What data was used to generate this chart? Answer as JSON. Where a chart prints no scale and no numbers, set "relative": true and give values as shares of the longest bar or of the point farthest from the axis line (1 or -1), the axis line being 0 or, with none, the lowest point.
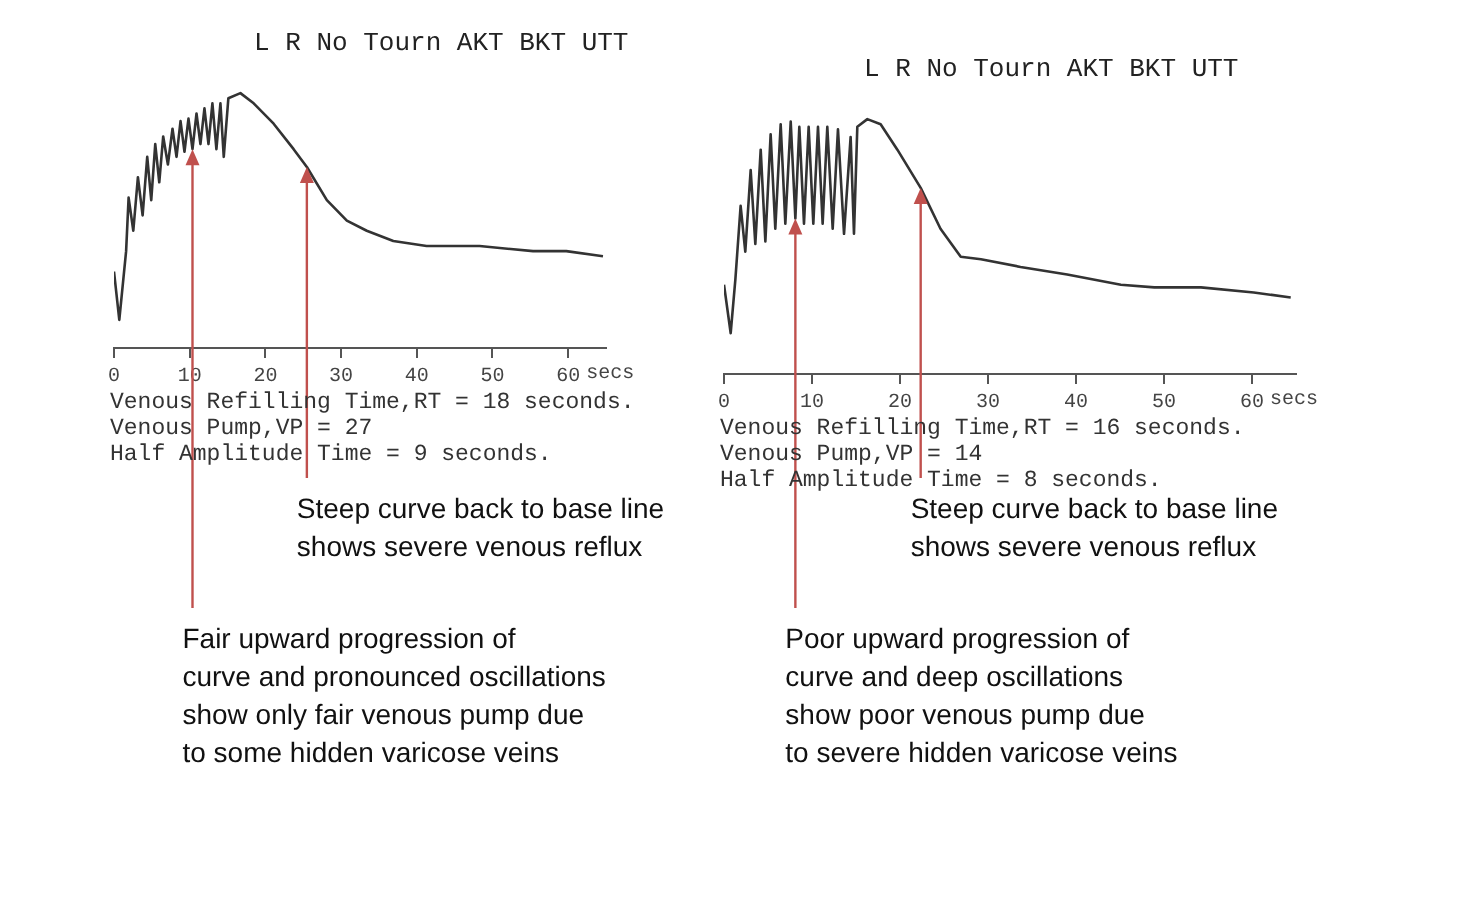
{
  "chart_data": [
    {
      "type": "line",
      "title": "L R No Tourn AKT BKT UTT",
      "xlabel": "secs",
      "relative": true,
      "xlim": [
        0,
        65
      ],
      "xticks": [
        0,
        10,
        20,
        30,
        40,
        50,
        60
      ],
      "series": [
        {
          "color": "#333333",
          "x": [
            0,
            0.7,
            1.6,
            1.93,
            2.55,
            3.16,
            3.78,
            4.39,
            4.92,
            5.45,
            5.98,
            6.5,
            7.12,
            7.73,
            8.26,
            8.79,
            9.31,
            9.84,
            10.37,
            10.9,
            11.42,
            11.95,
            12.48,
            13.0,
            13.53,
            14.06,
            14.5,
            15.11,
            16.7,
            18.45,
            21.09,
            23.73,
            25.48,
            28.12,
            30.76,
            33.39,
            36.9,
            41.3,
            48.3,
            55.36,
            59.75,
            64.6
          ],
          "values": [
            0.3,
            0.11,
            0.38,
            0.59,
            0.46,
            0.67,
            0.52,
            0.75,
            0.58,
            0.8,
            0.65,
            0.83,
            0.72,
            0.86,
            0.75,
            0.89,
            0.77,
            0.9,
            0.78,
            0.92,
            0.8,
            0.94,
            0.8,
            0.96,
            0.78,
            0.96,
            0.75,
            0.98,
            1,
            0.96,
            0.88,
            0.78,
            0.71,
            0.58,
            0.5,
            0.46,
            0.42,
            0.4,
            0.4,
            0.38,
            0.38,
            0.36
          ]
        }
      ],
      "annotations": [
        "Venous Refilling Time,RT = 18 seconds.",
        "Venous Pump,VP = 27",
        "Half Amplitude Time = 9 seconds.",
        {
          "text": "Steep curve back to base line\nshows severe venous reflux",
          "x": 25.48,
          "y": 0.71
        },
        {
          "text": "Fair upward progression of\ncurve and pronounced oscillations\nshow only fair venous pump due\nto some hidden varicose veins",
          "x": 10.37,
          "y": 0.78
        }
      ]
    },
    {
      "type": "line",
      "title": "L R No Tourn AKT BKT UTT",
      "xlabel": "secs",
      "relative": true,
      "xlim": [
        0,
        65
      ],
      "xticks": [
        0,
        10,
        20,
        30,
        40,
        50,
        60
      ],
      "series": [
        {
          "color": "#333333",
          "x": [
            0,
            0.76,
            1.29,
            1.89,
            2.42,
            3.03,
            3.56,
            4.17,
            4.7,
            5.3,
            5.83,
            6.44,
            6.97,
            7.58,
            8.11,
            8.56,
            9.09,
            9.62,
            10.15,
            10.68,
            11.21,
            11.74,
            12.35,
            12.95,
            13.64,
            14.39,
            14.77,
            15.15,
            16.29,
            17.8,
            19.7,
            22.35,
            24.6,
            26.9,
            29.2,
            33.7,
            39.0,
            45.1,
            48.9,
            54.2,
            60.2,
            64.4
          ],
          "values": [
            0.35,
            0.16,
            0.37,
            0.66,
            0.48,
            0.8,
            0.51,
            0.88,
            0.52,
            0.94,
            0.57,
            0.98,
            0.59,
            0.99,
            0.61,
            0.97,
            0.59,
            0.97,
            0.59,
            0.97,
            0.59,
            0.97,
            0.57,
            0.96,
            0.55,
            0.93,
            0.55,
            0.97,
            1,
            0.98,
            0.88,
            0.73,
            0.57,
            0.46,
            0.45,
            0.42,
            0.39,
            0.35,
            0.34,
            0.34,
            0.32,
            0.3
          ]
        }
      ],
      "annotations": [
        "Venous Refilling Time,RT = 16 seconds.",
        "Venous Pump,VP = 14",
        "Half Amplitude Time = 8 seconds.",
        {
          "text": "Steep curve back to base line\nshows severe venous reflux",
          "x": 22.35,
          "y": 0.73
        },
        {
          "text": "Poor upward progression of\ncurve and deep oscillations\nshow poor venous pump due\nto severe hidden varicose veins",
          "x": 8.11,
          "y": 0.61
        }
      ]
    }
  ]
}
